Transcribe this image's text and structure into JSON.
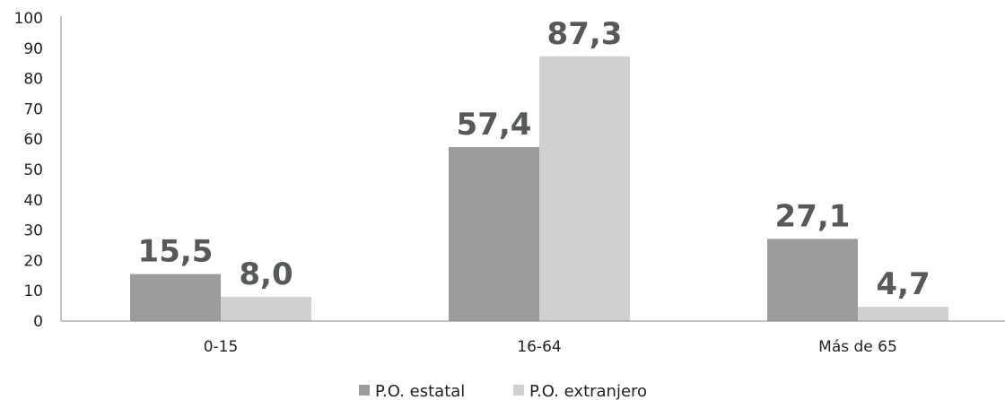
{
  "chart_data": {
    "type": "bar",
    "categories": [
      "0-15",
      "16-64",
      "Más de 65"
    ],
    "series": [
      {
        "name": "P.O. estatal",
        "values": [
          15.5,
          57.4,
          27.1
        ],
        "labels": [
          "15,5",
          "57,4",
          "27,1"
        ],
        "color": "#9a9d9b"
      },
      {
        "name": "P.O. extranjero",
        "values": [
          8.0,
          87.3,
          4.7
        ],
        "labels": [
          "8,0",
          "87,3",
          "4,7"
        ],
        "color": "#cfd0cf"
      }
    ],
    "ylim": [
      0,
      100
    ],
    "yticks": [
      "0",
      "10",
      "20",
      "30",
      "40",
      "50",
      "60",
      "70",
      "80",
      "90",
      "100"
    ],
    "grid": false,
    "legend_position": "bottom",
    "axis_color": "#888888"
  }
}
